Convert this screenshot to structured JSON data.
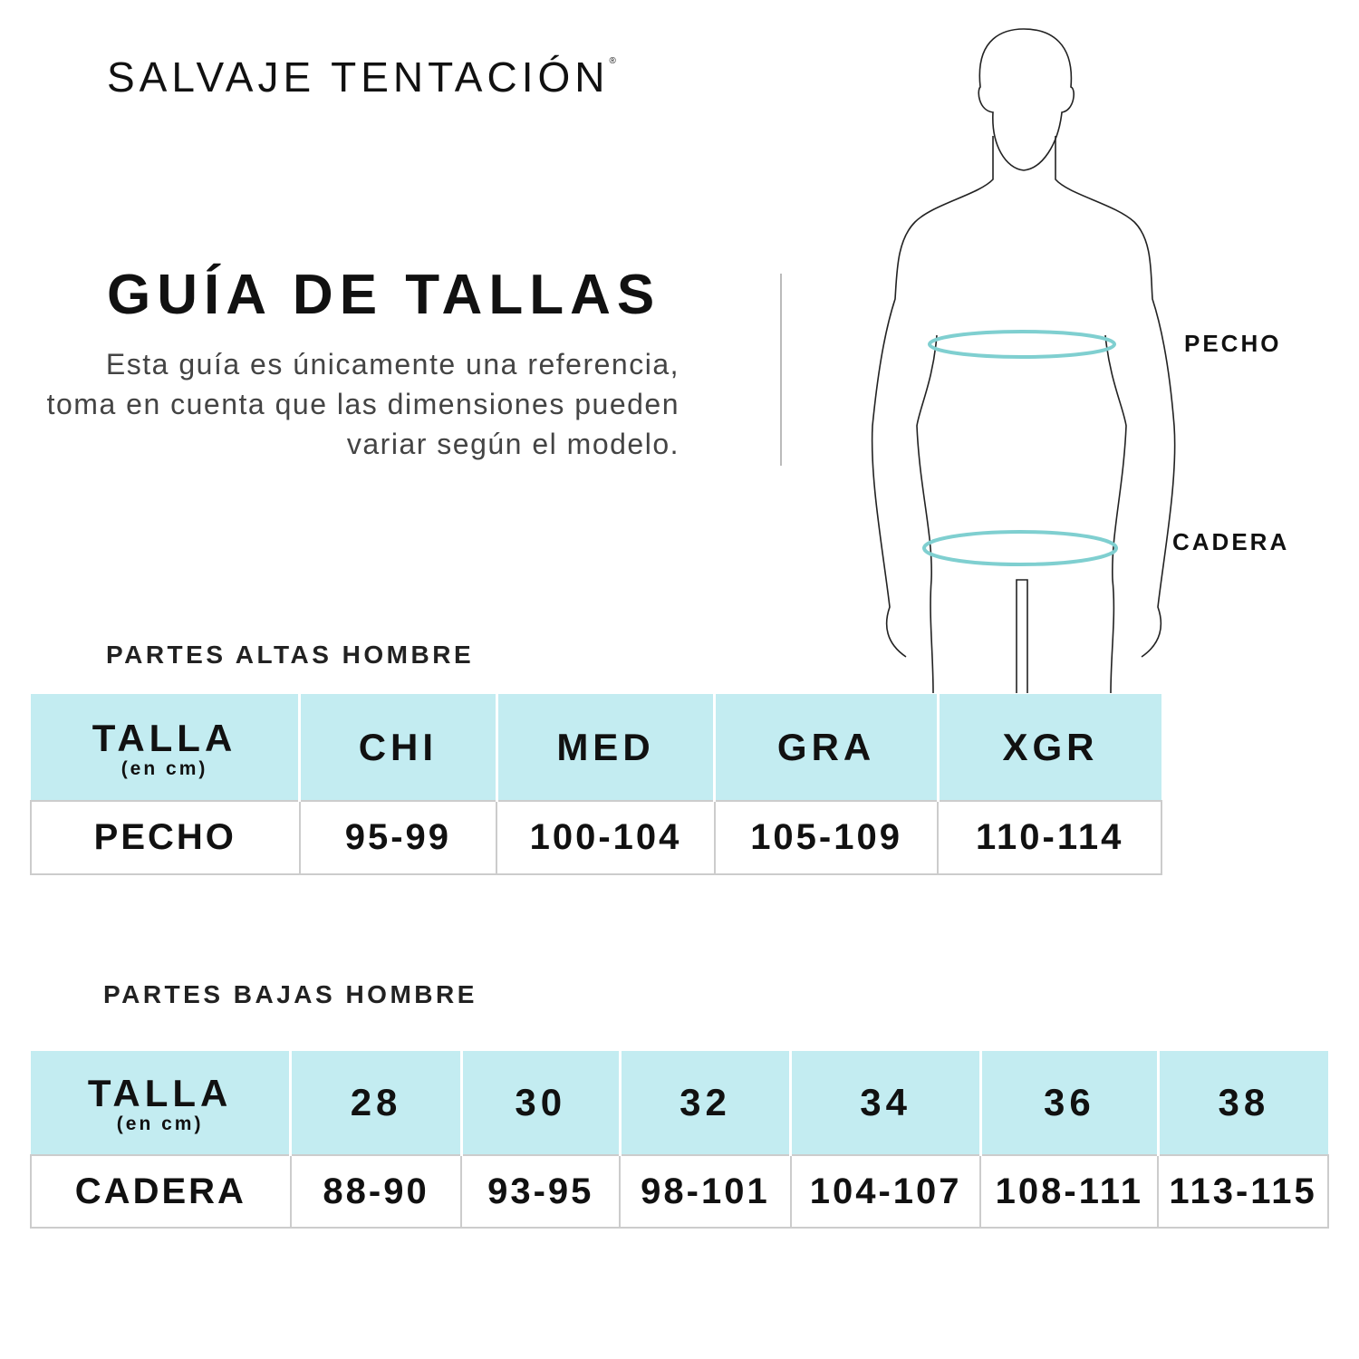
{
  "brand": {
    "name": "SALVAJE TENTACIÓN",
    "mark": "®"
  },
  "title": "GUÍA DE TALLAS",
  "description": "Esta guía es únicamente una referencia, toma en cuenta que las dimensiones pueden variar según el modelo.",
  "figure": {
    "labels": {
      "chest": "PECHO",
      "hip": "CADERA"
    },
    "ring_color": "#7fcfd0"
  },
  "colors": {
    "header_bg": "#c3ecf1"
  },
  "tops": {
    "section_title": "PARTES ALTAS HOMBRE",
    "header_label": "TALLA",
    "header_sub": "(en cm)",
    "sizes": [
      "CHI",
      "MED",
      "GRA",
      "XGR"
    ],
    "row_label": "PECHO",
    "values": [
      "95-99",
      "100-104",
      "105-109",
      "110-114"
    ]
  },
  "bottoms": {
    "section_title": "PARTES BAJAS HOMBRE",
    "header_label": "TALLA",
    "header_sub": "(en cm)",
    "sizes": [
      "28",
      "30",
      "32",
      "34",
      "36",
      "38"
    ],
    "row_label": "CADERA",
    "values": [
      "88-90",
      "93-95",
      "98-101",
      "104-107",
      "108-111",
      "113-115"
    ]
  }
}
